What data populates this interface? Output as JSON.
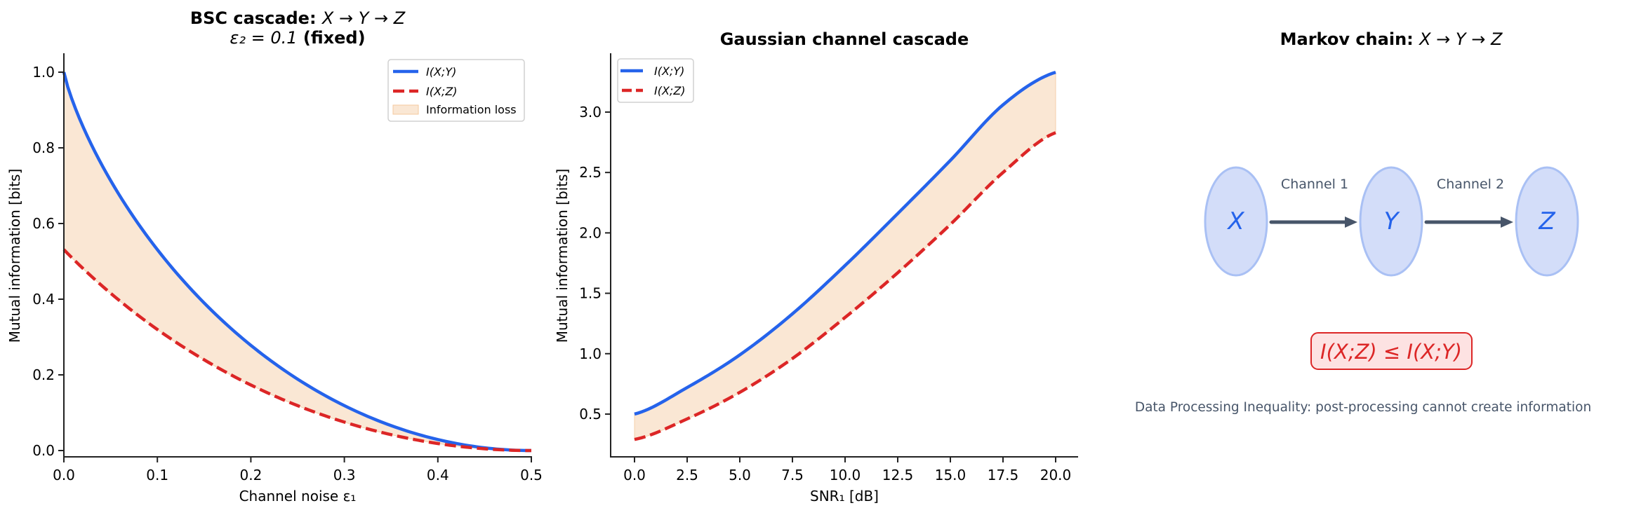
{
  "colors": {
    "iy": "#2563eb",
    "iz": "#dc2626",
    "loss_fill": "#f6d7b8",
    "loss_stroke": "#f4c89e",
    "node_fill": "#d3ddf9",
    "node_stroke": "#a9c0f4",
    "node_text": "#2563eb",
    "arrow": "#475569",
    "caption": "#475569",
    "ineq_fill": "#fde2e2",
    "ineq_stroke": "#dc2626"
  },
  "panels": {
    "bsc": {
      "title_bold": "BSC cascade:",
      "title_math": "X → Y → Z",
      "subtitle_math": "ε₂ = 0.1",
      "subtitle_bold": "(fixed)",
      "xlabel": "Channel noise ε₁",
      "ylabel": "Mutual information [bits]",
      "legend": [
        "I(X;Y)",
        "I(X;Z)",
        "Information loss"
      ]
    },
    "gauss": {
      "title": "Gaussian channel cascade",
      "xlabel": "SNR₁ [dB]",
      "ylabel": "Mutual information [bits]",
      "legend": [
        "I(X;Y)",
        "I(X;Z)"
      ]
    },
    "markov": {
      "title_bold": "Markov chain:",
      "title_math": "X → Y → Z",
      "nodes": [
        "X",
        "Y",
        "Z"
      ],
      "edges": [
        "Channel 1",
        "Channel 2"
      ],
      "inequality": "I(X;Z) ≤ I(X;Y)",
      "caption": "Data Processing Inequality: post-processing cannot create information"
    }
  },
  "chart_data": [
    {
      "type": "line",
      "title": "BSC cascade: X → Y → Z, ε₂ = 0.1 (fixed)",
      "xlabel": "Channel noise ε₁",
      "ylabel": "Mutual information [bits]",
      "xlim": [
        0.0,
        0.5
      ],
      "ylim": [
        -0.025,
        1.05
      ],
      "xticks": [
        0.0,
        0.1,
        0.2,
        0.3,
        0.4,
        0.5
      ],
      "yticks": [
        0.0,
        0.2,
        0.4,
        0.6,
        0.8,
        1.0
      ],
      "grid": false,
      "legend_position": "upper right",
      "x": [
        0.0,
        0.05,
        0.1,
        0.15,
        0.2,
        0.25,
        0.3,
        0.35,
        0.4,
        0.45,
        0.5
      ],
      "series": [
        {
          "name": "I(X;Y)",
          "style": "solid",
          "values": [
            1.0,
            0.714,
            0.531,
            0.39,
            0.278,
            0.189,
            0.119,
            0.066,
            0.029,
            0.007,
            0.0
          ]
        },
        {
          "name": "I(X;Z)",
          "style": "dashed",
          "values": [
            0.531,
            0.405,
            0.302,
            0.218,
            0.15,
            0.097,
            0.057,
            0.029,
            0.012,
            0.003,
            0.0
          ]
        }
      ],
      "fill_between": {
        "name": "Information loss",
        "between": [
          "I(X;Y)",
          "I(X;Z)"
        ]
      }
    },
    {
      "type": "line",
      "title": "Gaussian channel cascade",
      "xlabel": "SNR₁ [dB]",
      "ylabel": "Mutual information [bits]",
      "xlim": [
        -1.0,
        21.0
      ],
      "ylim": [
        0.146,
        3.49
      ],
      "xticks": [
        0.0,
        2.5,
        5.0,
        7.5,
        10.0,
        12.5,
        15.0,
        17.5,
        20.0
      ],
      "yticks": [
        0.5,
        1.0,
        1.5,
        2.0,
        2.5,
        3.0
      ],
      "grid": false,
      "legend_position": "upper left",
      "x": [
        0.0,
        2.5,
        5.0,
        7.5,
        10.0,
        12.5,
        15.0,
        17.5,
        20.0
      ],
      "series": [
        {
          "name": "I(X;Y)",
          "style": "solid",
          "values": [
            0.5,
            0.72,
            0.99,
            1.33,
            1.73,
            2.16,
            2.6,
            3.06,
            3.33
          ]
        },
        {
          "name": "I(X;Z)",
          "style": "dashed",
          "values": [
            0.29,
            0.46,
            0.68,
            0.96,
            1.3,
            1.67,
            2.07,
            2.5,
            2.83
          ]
        }
      ],
      "fill_between": {
        "name": "Information loss",
        "between": [
          "I(X;Y)",
          "I(X;Z)"
        ]
      }
    }
  ]
}
